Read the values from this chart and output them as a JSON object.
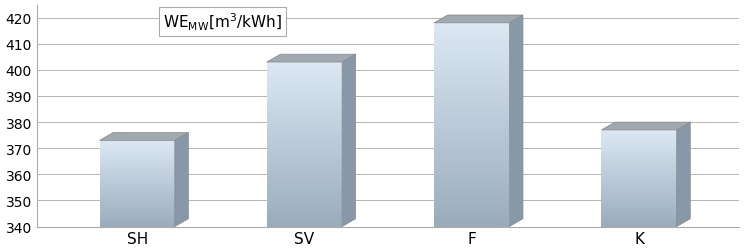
{
  "categories": [
    "SH",
    "SV",
    "F",
    "K"
  ],
  "values": [
    373,
    403,
    418,
    377
  ],
  "ylim": [
    340,
    425
  ],
  "yticks": [
    340,
    350,
    360,
    370,
    380,
    390,
    400,
    410,
    420
  ],
  "bar_width": 0.45,
  "bar_gap": 1.0,
  "background_color": "#ffffff",
  "plot_bg": "#ffffff",
  "grid_color": "#aaaaaa",
  "legend_text": "WE",
  "legend_sub": "MW",
  "legend_unit": "[m³/kWh]",
  "bar_top_color": "#909090",
  "bar_mid_color": "#c8d4e0",
  "bar_bot_color": "#a8b4c0",
  "bar_side_color": "#888888",
  "bar_top_cap_color": "#707070",
  "depth": 0.08
}
